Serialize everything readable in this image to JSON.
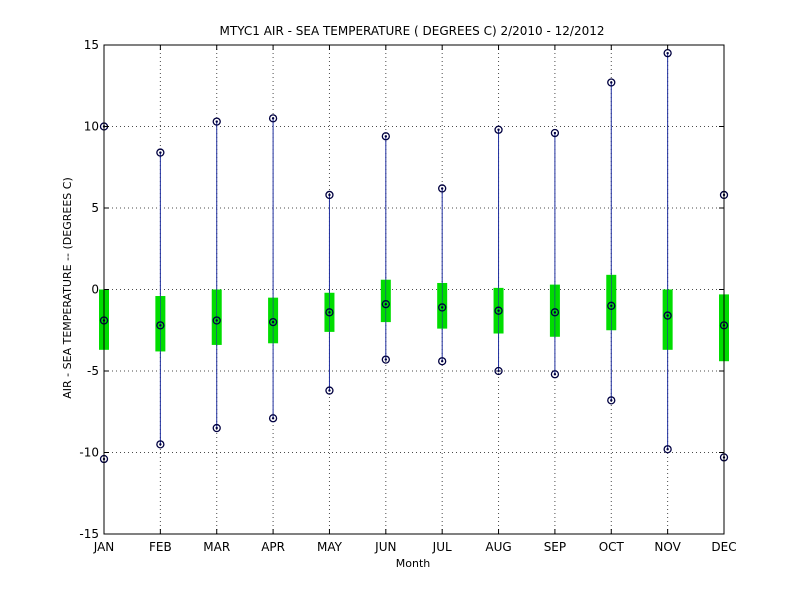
{
  "chart_data": {
    "type": "box",
    "title": "MTYC1  AIR - SEA TEMPERATURE ( DEGREES C) 2/2010 - 12/2012",
    "xlabel": "Month",
    "ylabel": "AIR - SEA TEMPERATURE -- (DEGREES C)",
    "ylim": [
      -15,
      15
    ],
    "yticks": [
      -15,
      -10,
      -5,
      0,
      5,
      10,
      15
    ],
    "grid": true,
    "colors": {
      "whisker": "#1f2f9f",
      "box": "#00dd00",
      "marker": "#000040",
      "axes": "#000000",
      "grid": "#000000"
    },
    "categories": [
      "JAN",
      "FEB",
      "MAR",
      "APR",
      "MAY",
      "JUN",
      "JUL",
      "AUG",
      "SEP",
      "OCT",
      "NOV",
      "DEC"
    ],
    "series": [
      {
        "min": -10.4,
        "q1": -3.7,
        "median": -1.9,
        "q3": 0.0,
        "max": 10.0
      },
      {
        "min": -9.5,
        "q1": -3.8,
        "median": -2.2,
        "q3": -0.4,
        "max": 8.4
      },
      {
        "min": -8.5,
        "q1": -3.4,
        "median": -1.9,
        "q3": 0.0,
        "max": 10.3
      },
      {
        "min": -7.9,
        "q1": -3.3,
        "median": -2.0,
        "q3": -0.5,
        "max": 10.5
      },
      {
        "min": -6.2,
        "q1": -2.6,
        "median": -1.4,
        "q3": -0.2,
        "max": 5.8
      },
      {
        "min": -4.3,
        "q1": -2.0,
        "median": -0.9,
        "q3": 0.6,
        "max": 9.4
      },
      {
        "min": -4.4,
        "q1": -2.4,
        "median": -1.1,
        "q3": 0.4,
        "max": 6.2
      },
      {
        "min": -5.0,
        "q1": -2.7,
        "median": -1.3,
        "q3": 0.1,
        "max": 9.8
      },
      {
        "min": -5.2,
        "q1": -2.9,
        "median": -1.4,
        "q3": 0.3,
        "max": 9.6
      },
      {
        "min": -6.8,
        "q1": -2.5,
        "median": -1.0,
        "q3": 0.9,
        "max": 12.7
      },
      {
        "min": -9.8,
        "q1": -3.7,
        "median": -1.6,
        "q3": 0.0,
        "max": 14.5
      },
      {
        "min": -10.3,
        "q1": -4.4,
        "median": -2.2,
        "q3": -0.3,
        "max": 5.8
      }
    ]
  }
}
